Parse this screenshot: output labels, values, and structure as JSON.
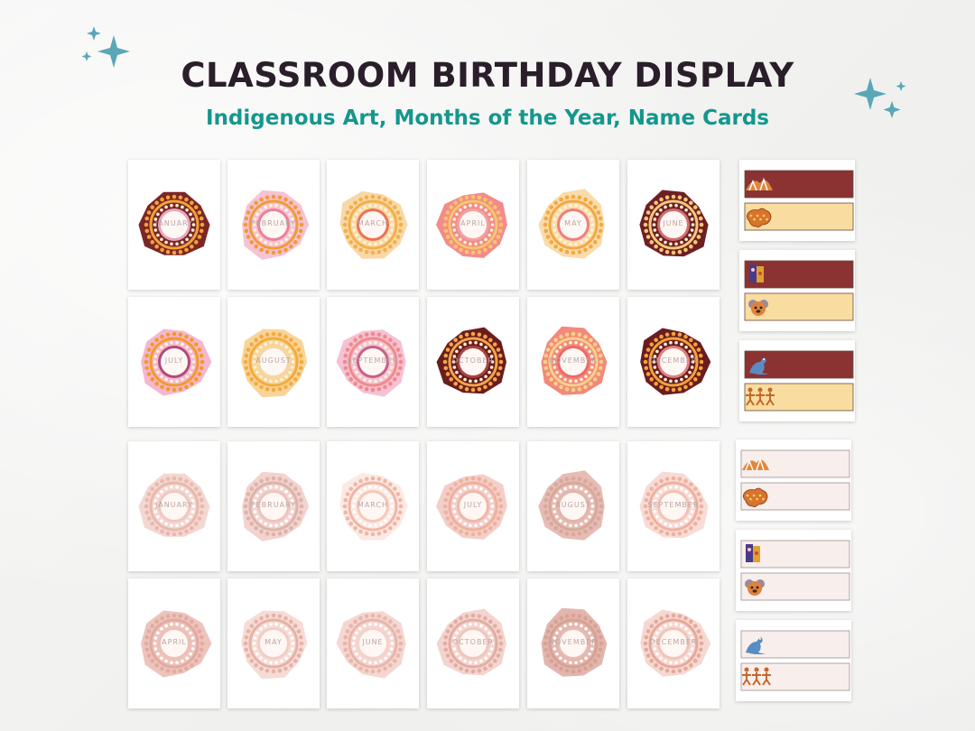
{
  "header": {
    "title": "CLASSROOM BIRTHDAY DISPLAY",
    "subtitle": "Indigenous Art, Months of the Year, Name Cards"
  },
  "colors": {
    "title": "#2a1e2a",
    "subtitle": "#13978e",
    "sparkle": "#5aa7b8"
  },
  "vibrant_cards": [
    {
      "label": "JANUARY",
      "blob": "#7b2626",
      "ring": "#f2a23a",
      "inner": "#e8a7c0"
    },
    {
      "label": "FEBRUARY",
      "blob": "#f5c3d3",
      "ring": "#f29a3a",
      "inner": "#f07e9a"
    },
    {
      "label": "MARCH",
      "blob": "#f8d8a8",
      "ring": "#f2b04a",
      "inner": "#f07050"
    },
    {
      "label": "APRIL",
      "blob": "#f28b8b",
      "ring": "#f7c56a",
      "inner": "#f5a0a0"
    },
    {
      "label": "MAY",
      "blob": "#f9dcaa",
      "ring": "#f4a742",
      "inner": "#f07e7e"
    },
    {
      "label": "JUNE",
      "blob": "#6e1f22",
      "ring": "#f5c97a",
      "inner": "#d06e6e"
    },
    {
      "label": "JULY",
      "blob": "#f5b6cf",
      "ring": "#f29a2a",
      "inner": "#b24a7a"
    },
    {
      "label": "AUGUST",
      "blob": "#f8d49a",
      "ring": "#f4ab3c",
      "inner": "#f4d7a2"
    },
    {
      "label": "SEPTEMBER",
      "blob": "#f5c1d4",
      "ring": "#f08a8a",
      "inner": "#c85f84"
    },
    {
      "label": "OCTOBER",
      "blob": "#6a1d1d",
      "ring": "#f3a54a",
      "inner": "#a84242"
    },
    {
      "label": "NOVEMBER",
      "blob": "#f2897a",
      "ring": "#f7d08a",
      "inner": "#f06868"
    },
    {
      "label": "DECEMBER",
      "blob": "#6a1c20",
      "ring": "#f2a33a",
      "inner": "#e08080"
    }
  ],
  "muted_cards": [
    {
      "label": "JANUARY",
      "blob": "#f3d7d2",
      "ring": "#e9b8ac",
      "inner": "#f0c8c0"
    },
    {
      "label": "FEBRUARY",
      "blob": "#f3d3cf",
      "ring": "#dcb4aa",
      "inner": "#ecc4bc"
    },
    {
      "label": "MARCH",
      "blob": "#fbeae4",
      "ring": "#f0b6a4",
      "inner": "#f5c8b8"
    },
    {
      "label": "JULY",
      "blob": "#f3cfca",
      "ring": "#eeb19d",
      "inner": "#f0b6aa"
    },
    {
      "label": "AUGUST",
      "blob": "#e6bcb4",
      "ring": "#d8a89c",
      "inner": "#e2b4aa"
    },
    {
      "label": "SEPTEMBER",
      "blob": "#f7dcd6",
      "ring": "#f0b0a0",
      "inner": "#f2c2b4"
    },
    {
      "label": "APRIL",
      "blob": "#ecc4bc",
      "ring": "#e2aaa0",
      "inner": "#ecc0b6"
    },
    {
      "label": "MAY",
      "blob": "#f6dcd6",
      "ring": "#e6b2a6",
      "inner": "#f2cdc4"
    },
    {
      "label": "JUNE",
      "blob": "#f5d6d0",
      "ring": "#e8b6aa",
      "inner": "#f4d2ca"
    },
    {
      "label": "OCTOBER",
      "blob": "#f4d4ce",
      "ring": "#e2aea2",
      "inner": "#efc6bc"
    },
    {
      "label": "NOVEMBER",
      "blob": "#e2b6ae",
      "ring": "#d6a294",
      "inner": "#e6bcb2"
    },
    {
      "label": "DECEMBER",
      "blob": "#f6d8d2",
      "ring": "#e6a99a",
      "inner": "#f1c4b8"
    }
  ],
  "name_cards": [
    {
      "style": "vibrant",
      "top_fill": "#8b3232",
      "bottom_fill": "#f9dca0",
      "top_icon": "rock-art-icon",
      "bottom_icon": "australia-map-icon"
    },
    {
      "style": "vibrant",
      "top_fill": "#8b3232",
      "bottom_fill": "#f9dca0",
      "top_icon": "totem-art-icon",
      "bottom_icon": "koala-icon"
    },
    {
      "style": "vibrant",
      "top_fill": "#8b3232",
      "bottom_fill": "#f9dca0",
      "top_icon": "kangaroo-icon",
      "bottom_icon": "dancers-icon"
    },
    {
      "style": "muted",
      "top_fill": "#f8eeec",
      "bottom_fill": "#f8eeec",
      "top_icon": "rock-art-icon",
      "bottom_icon": "australia-map-icon"
    },
    {
      "style": "muted",
      "top_fill": "#f8eeec",
      "bottom_fill": "#f8eeec",
      "top_icon": "totem-art-icon",
      "bottom_icon": "koala-icon"
    },
    {
      "style": "muted",
      "top_fill": "#f8eeec",
      "bottom_fill": "#f8eeec",
      "top_icon": "kangaroo-icon",
      "bottom_icon": "dancers-icon"
    }
  ]
}
